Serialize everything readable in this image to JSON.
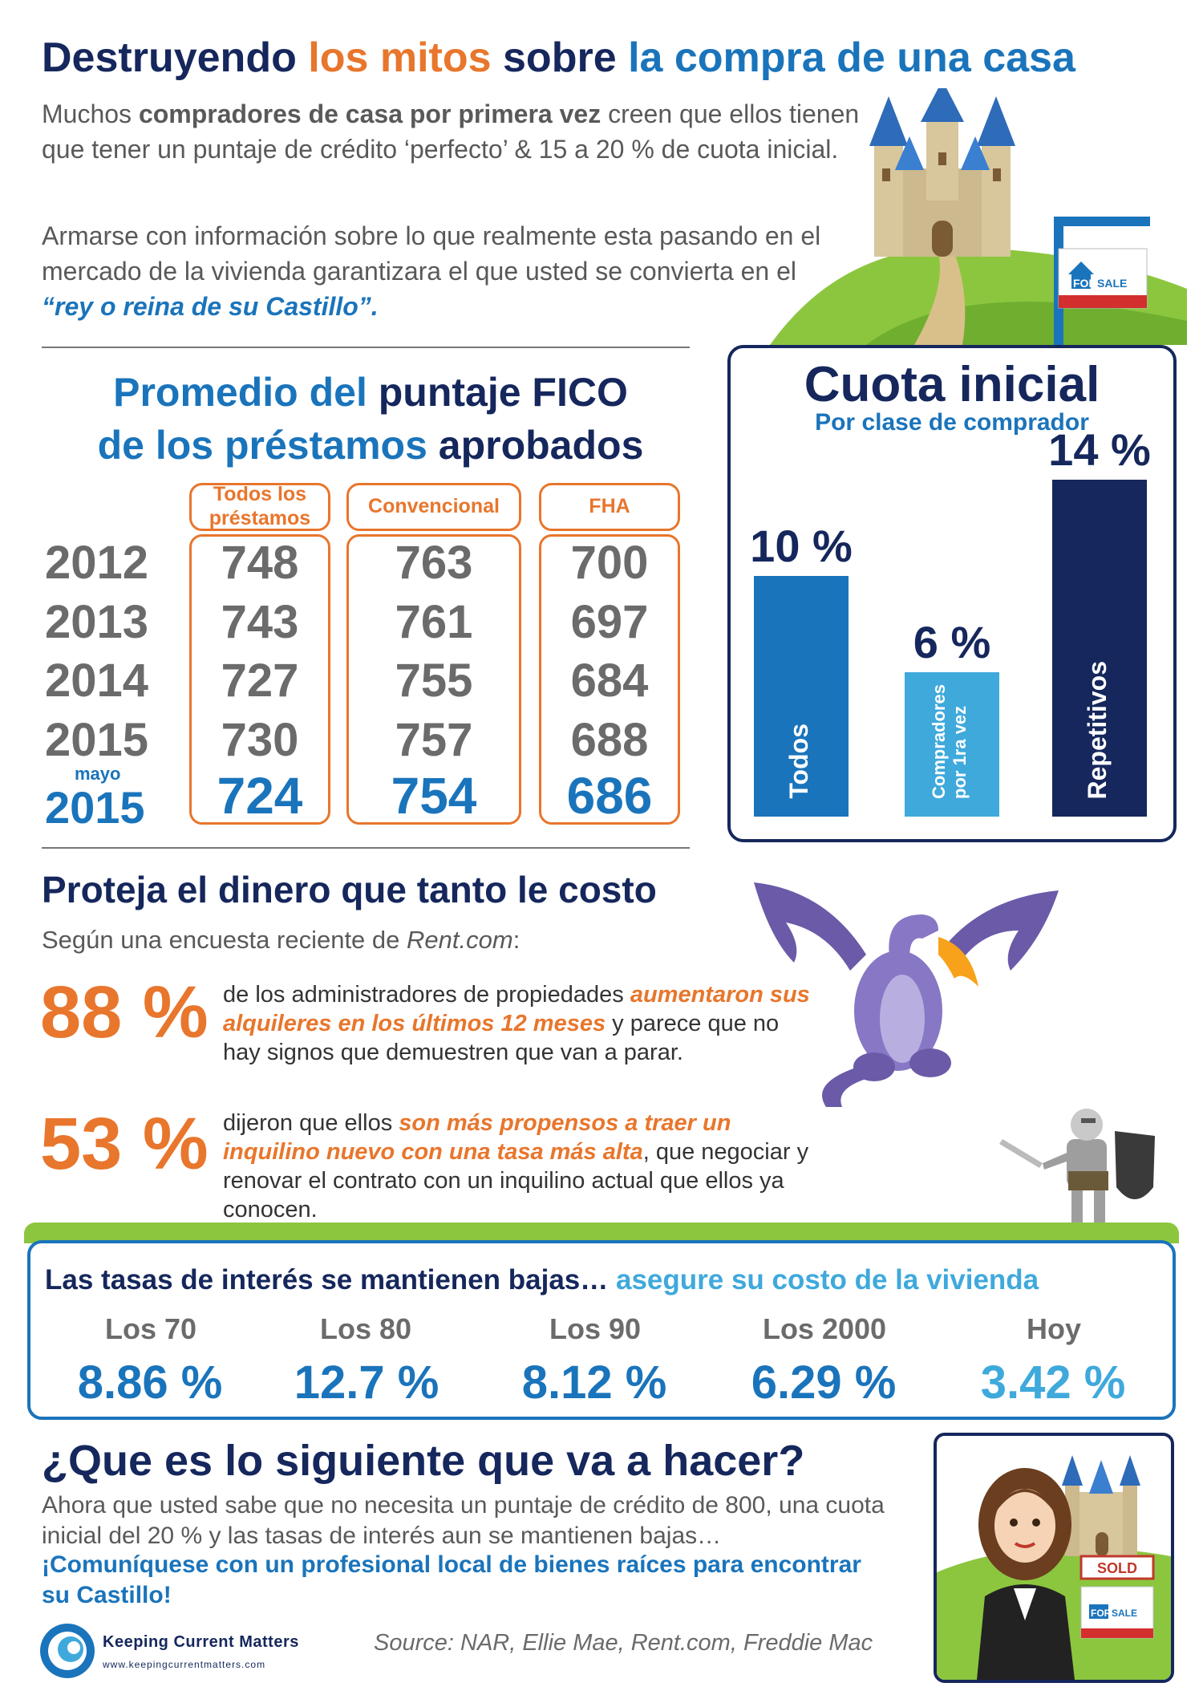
{
  "header": {
    "title_part1": "Destruyendo ",
    "title_part2": "los mitos",
    "title_part3": " sobre ",
    "title_part4": "la compra de una casa",
    "intro1_a": "Muchos ",
    "intro1_b": "compradores de casa por primera vez",
    "intro1_c": " creen que ellos tienen que tener un puntaje de crédito ‘perfecto’ & 15 a 20 % de cuota inicial.",
    "intro2_a": "Armarse con información sobre lo que realmente esta pasando en el mercado de la vivienda garantizara el que usted se convierta en el ",
    "intro2_b": "“rey o reina de su Castillo”.",
    "sign_for": "FOR",
    "sign_sale": "SALE"
  },
  "fico": {
    "title_a": "Promedio del ",
    "title_b": "puntaje FICO",
    "title_c": "de los préstamos ",
    "title_d": "aprobados",
    "columns": [
      "Todos los préstamos",
      "Convencional",
      "FHA"
    ],
    "years": [
      "2012",
      "2013",
      "2014",
      "2015"
    ],
    "final_year_prefix": "mayo",
    "final_year": "2015",
    "rows": [
      [
        "748",
        "763",
        "700"
      ],
      [
        "743",
        "761",
        "697"
      ],
      [
        "727",
        "755",
        "684"
      ],
      [
        "730",
        "757",
        "688"
      ]
    ],
    "final_row": [
      "724",
      "754",
      "686"
    ]
  },
  "cuota": {
    "title": "Cuota inicial",
    "subtitle": "Por clase de comprador",
    "bars": [
      {
        "label": "Todos",
        "pct": "10 %",
        "value": 10,
        "color": "#1a74bb"
      },
      {
        "label": "Compradores por 1ra vez",
        "pct": "6 %",
        "value": 6,
        "color": "#3fa9dc"
      },
      {
        "label": "Repetitivos",
        "pct": "14 %",
        "value": 14,
        "color": "#15275c"
      }
    ]
  },
  "proteja": {
    "title": "Proteja el dinero que tanto le costo",
    "sub_a": "Según una encuesta reciente de ",
    "sub_b": "Rent.com",
    "sub_c": ":",
    "stat1_pct": "88 %",
    "stat1_a": "de los administradores de propiedades ",
    "stat1_b": "aumentaron sus alquileres en los últimos 12 meses",
    "stat1_c": " y parece que no hay signos que demuestren que van a parar.",
    "stat2_pct": "53 %",
    "stat2_a": "dijeron que ellos ",
    "stat2_b": "son más propensos a traer un inquilino nuevo con una tasa más alta",
    "stat2_c": ", que negociar y renovar el contrato con un inquilino actual que ellos ya conocen."
  },
  "rates": {
    "title_a": "Las tasas de interés se mantienen bajas… ",
    "title_b": "asegure su costo de la vivienda",
    "items": [
      {
        "label": "Los 70",
        "value": "8.86 %"
      },
      {
        "label": "Los 80",
        "value": "12.7 %"
      },
      {
        "label": "Los 90",
        "value": "8.12 %"
      },
      {
        "label": "Los 2000",
        "value": "6.29 %"
      },
      {
        "label": "Hoy",
        "value": "3.42 %"
      }
    ]
  },
  "next": {
    "title": "¿Que es lo siguiente que va a hacer?",
    "body": "Ahora que usted sabe que no necesita un puntaje de crédito de 800, una cuota inicial del 20 % y las tasas de interés aun se mantienen bajas…",
    "cta": "¡Comuníquese con un profesional local de bienes raíces para encontrar su Castillo!",
    "sold": "SOLD",
    "sign_for": "FOR",
    "sign_sale": "SALE"
  },
  "footer": {
    "logo_name": "Keeping Current Matters",
    "logo_url": "www.keepingcurrentmatters.com",
    "source": "Source: NAR, Ellie Mae, Rent.com, Freddie Mac"
  },
  "colors": {
    "navy": "#15275c",
    "orange": "#e8762c",
    "blue": "#1a74bb",
    "light_blue": "#3fa9dc",
    "green": "#8cc63f"
  }
}
